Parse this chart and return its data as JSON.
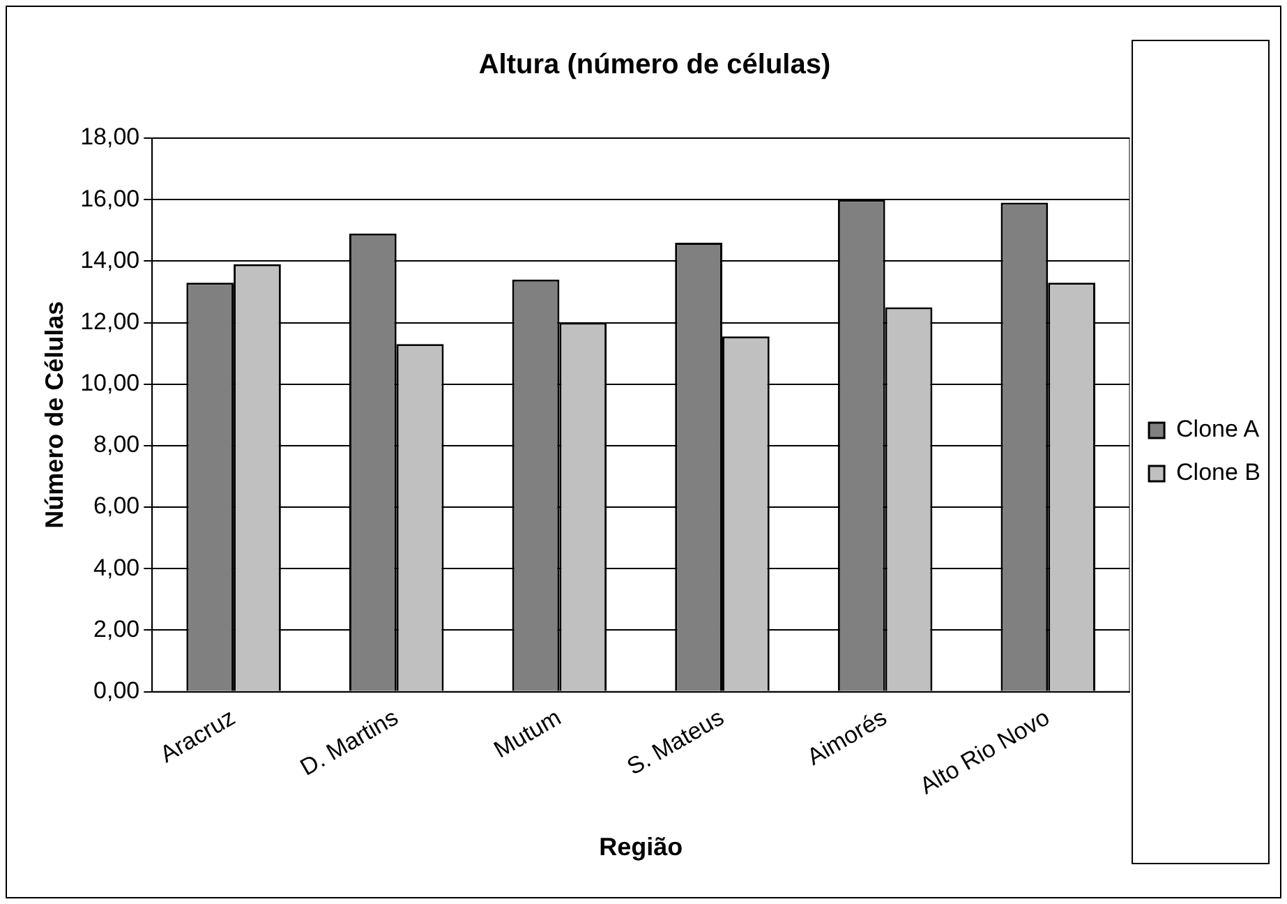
{
  "chart_data": {
    "type": "bar",
    "title": "Altura (número de células)",
    "xlabel": "Região",
    "ylabel": "Número de Células",
    "categories": [
      "Aracruz",
      "D. Martins",
      "Mutum",
      "S. Mateus",
      "Aimorés",
      "Alto Rio Novo"
    ],
    "series": [
      {
        "name": "Clone A",
        "color": "#808080",
        "values": [
          13.3,
          14.9,
          13.4,
          14.6,
          16.0,
          15.9
        ]
      },
      {
        "name": "Clone B",
        "color": "#c0c0c0",
        "values": [
          13.9,
          11.3,
          12.0,
          11.55,
          12.5,
          13.3
        ]
      }
    ],
    "ylim": [
      0,
      18
    ],
    "yticks": [
      {
        "value": 0,
        "label": "0,00"
      },
      {
        "value": 2,
        "label": "2,00"
      },
      {
        "value": 4,
        "label": "4,00"
      },
      {
        "value": 6,
        "label": "6,00"
      },
      {
        "value": 8,
        "label": "8,00"
      },
      {
        "value": 10,
        "label": "10,00"
      },
      {
        "value": 12,
        "label": "12,00"
      },
      {
        "value": 14,
        "label": "14,00"
      },
      {
        "value": 16,
        "label": "16,00"
      },
      {
        "value": 18,
        "label": "18,00"
      }
    ],
    "grid": "y",
    "legend": "right"
  }
}
